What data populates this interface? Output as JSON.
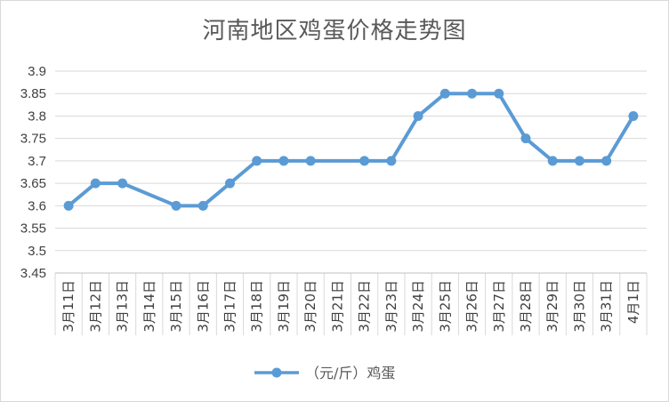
{
  "chart_data": {
    "type": "line",
    "title": "河南地区鸡蛋价格走势图",
    "categories": [
      "3月11日",
      "3月12日",
      "3月13日",
      "3月14日",
      "3月15日",
      "3月16日",
      "3月17日",
      "3月18日",
      "3月19日",
      "3月20日",
      "3月21日",
      "3月22日",
      "3月23日",
      "3月24日",
      "3月25日",
      "3月26日",
      "3月27日",
      "3月28日",
      "3月29日",
      "3月30日",
      "3月31日",
      "4月1日"
    ],
    "series": [
      {
        "name": "（元/斤）鸡蛋",
        "color": "#5b9bd5",
        "values": [
          3.6,
          3.65,
          3.65,
          null,
          3.6,
          3.6,
          3.65,
          3.7,
          3.7,
          3.7,
          null,
          3.7,
          3.7,
          3.8,
          3.85,
          3.85,
          3.85,
          3.75,
          3.7,
          3.7,
          3.7,
          3.8
        ]
      }
    ],
    "ylim": [
      3.45,
      3.9
    ],
    "yticks": [
      "3.9",
      "3.85",
      "3.8",
      "3.75",
      "3.7",
      "3.65",
      "3.6",
      "3.55",
      "3.5",
      "3.45"
    ],
    "xlabel": "",
    "ylabel": "",
    "grid": true,
    "legend_position": "bottom"
  }
}
